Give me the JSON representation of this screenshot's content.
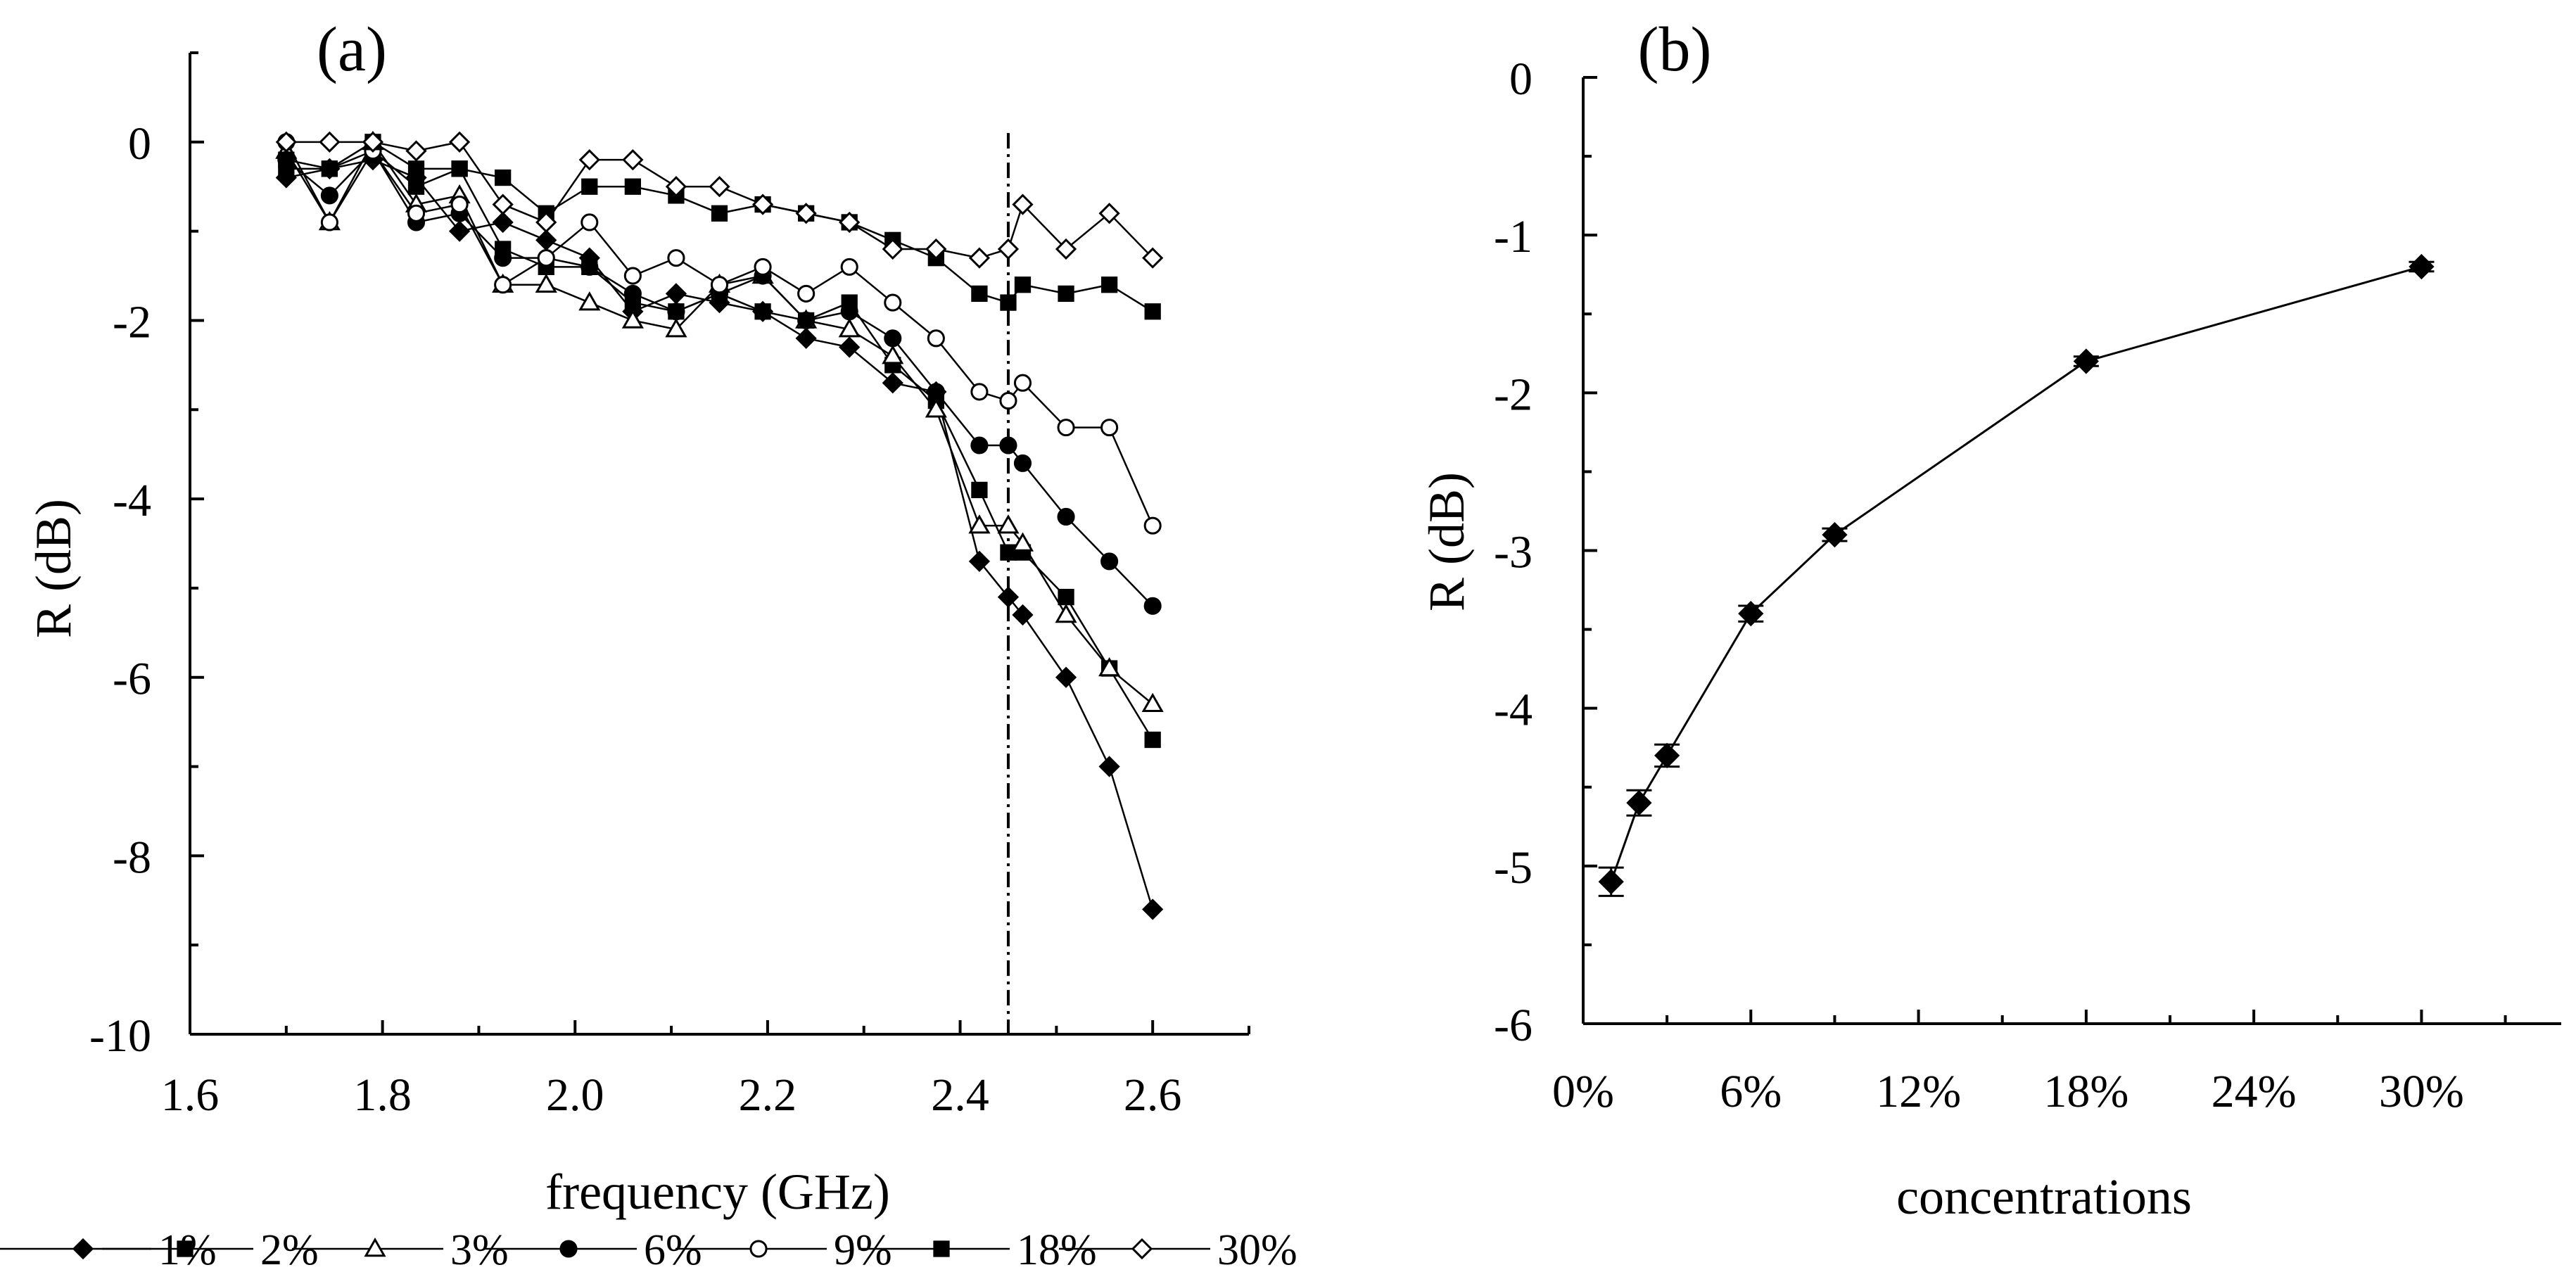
{
  "chart_data": [
    {
      "type": "line",
      "panel_label": "(a)",
      "xlabel": "frequency (GHz)",
      "ylabel": "R (dB)",
      "xlim": [
        1.6,
        2.7
      ],
      "ylim": [
        -10,
        1
      ],
      "x_ticks": [
        "1.6",
        "1.8",
        "2.0",
        "2.2",
        "2.4",
        "2.6"
      ],
      "y_ticks": [
        "0",
        "-2",
        "-4",
        "-6",
        "-8",
        "-10"
      ],
      "vline_x": 2.45,
      "legend_position": "bottom",
      "x": [
        1.7,
        1.745,
        1.79,
        1.835,
        1.88,
        1.925,
        1.97,
        2.015,
        2.06,
        2.105,
        2.15,
        2.195,
        2.24,
        2.285,
        2.33,
        2.375,
        2.42,
        2.45,
        2.465,
        2.51,
        2.555,
        2.6
      ],
      "series": [
        {
          "name": "1%",
          "marker": "diamond-filled",
          "values": [
            -0.4,
            -0.3,
            -0.2,
            -0.4,
            -1.0,
            -0.9,
            -1.1,
            -1.3,
            -1.9,
            -1.7,
            -1.8,
            -1.9,
            -2.2,
            -2.3,
            -2.7,
            -2.8,
            -4.7,
            -5.1,
            -5.3,
            -6.0,
            -7.0,
            -8.6
          ]
        },
        {
          "name": "2%",
          "marker": "square-filled",
          "values": [
            -0.3,
            -0.3,
            -0.1,
            -0.5,
            -0.3,
            -1.2,
            -1.4,
            -1.4,
            -1.8,
            -1.9,
            -1.7,
            -1.9,
            -2.0,
            -1.8,
            -2.5,
            -2.9,
            -3.9,
            -4.6,
            -4.6,
            -5.1,
            -5.9,
            -6.7
          ]
        },
        {
          "name": "3%",
          "marker": "triangle-open",
          "values": [
            -0.1,
            -0.9,
            0.0,
            -0.7,
            -0.6,
            -1.6,
            -1.6,
            -1.8,
            -2.0,
            -2.1,
            -1.6,
            -1.5,
            -2.0,
            -2.1,
            -2.4,
            -3.0,
            -4.3,
            -4.3,
            -4.5,
            -5.3,
            -5.9,
            -6.3
          ]
        },
        {
          "name": "6%",
          "marker": "circle-filled",
          "values": [
            -0.2,
            -0.6,
            -0.1,
            -0.9,
            -0.8,
            -1.3,
            -1.3,
            -1.4,
            -1.7,
            -1.9,
            -1.7,
            -1.5,
            -2.0,
            -1.9,
            -2.2,
            -2.8,
            -3.4,
            -3.4,
            -3.6,
            -4.2,
            -4.7,
            -5.2
          ]
        },
        {
          "name": "9%",
          "marker": "circle-open",
          "values": [
            0.0,
            -0.9,
            -0.1,
            -0.8,
            -0.7,
            -1.6,
            -1.3,
            -0.9,
            -1.5,
            -1.3,
            -1.6,
            -1.4,
            -1.7,
            -1.4,
            -1.8,
            -2.2,
            -2.8,
            -2.9,
            -2.7,
            -3.2,
            -3.2,
            -4.3
          ]
        },
        {
          "name": "18%",
          "marker": "square-filled",
          "values": [
            -0.2,
            -0.3,
            0.0,
            -0.3,
            -0.3,
            -0.4,
            -0.8,
            -0.5,
            -0.5,
            -0.6,
            -0.8,
            -0.7,
            -0.8,
            -0.9,
            -1.1,
            -1.3,
            -1.7,
            -1.8,
            -1.6,
            -1.7,
            -1.6,
            -1.9
          ]
        },
        {
          "name": "30%",
          "marker": "diamond-open",
          "values": [
            0.0,
            0.0,
            0.0,
            -0.1,
            0.0,
            -0.7,
            -0.9,
            -0.2,
            -0.2,
            -0.5,
            -0.5,
            -0.7,
            -0.8,
            -0.9,
            -1.2,
            -1.2,
            -1.3,
            -1.2,
            -0.7,
            -1.2,
            -0.8,
            -1.3
          ]
        }
      ]
    },
    {
      "type": "line",
      "panel_label": "(b)",
      "xlabel": "concentrations",
      "ylabel": "R (dB)",
      "xlim": [
        0,
        35
      ],
      "ylim": [
        -6,
        0
      ],
      "x_tick_values": [
        0,
        6,
        12,
        18,
        24,
        30
      ],
      "x_ticks": [
        "0%",
        "6%",
        "12%",
        "18%",
        "24%",
        "30%"
      ],
      "y_ticks": [
        "0",
        "-1",
        "-2",
        "-3",
        "-4",
        "-5",
        "-6"
      ],
      "series": [
        {
          "name": "R",
          "marker": "diamond-filled",
          "x": [
            1,
            2,
            3,
            6,
            9,
            18,
            30
          ],
          "values": [
            -5.1,
            -4.6,
            -4.3,
            -3.4,
            -2.9,
            -1.8,
            -1.2
          ],
          "errors": [
            0.09,
            0.08,
            0.07,
            0.05,
            0.04,
            0.03,
            0.03
          ]
        }
      ]
    }
  ]
}
